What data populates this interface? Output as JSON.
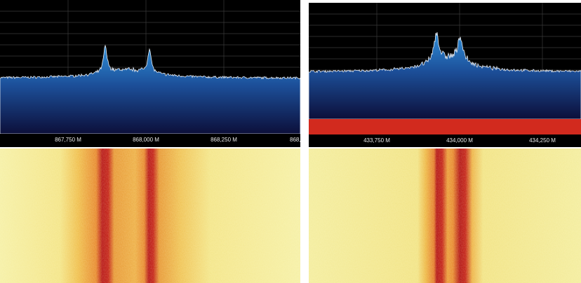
{
  "panels": [
    {
      "axis_labels": [
        "867,750 M",
        "868,000 M",
        "868,250 M",
        "868,"
      ]
    },
    {
      "axis_labels": [
        "433,750 M",
        "434,000 M",
        "434,250 M"
      ]
    }
  ]
}
